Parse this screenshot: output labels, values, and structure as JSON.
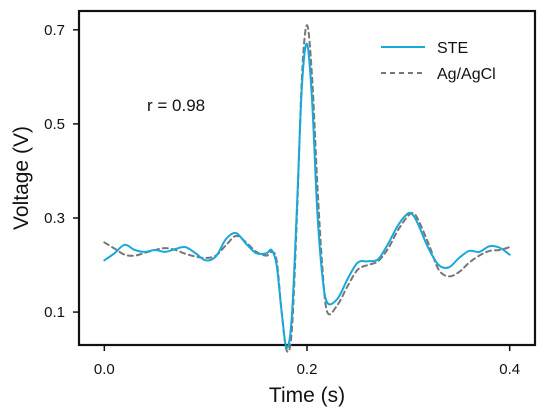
{
  "chart_data": {
    "type": "line",
    "xlabel": "Time (s)",
    "ylabel": "Voltage (V)",
    "xlim": [
      -0.025,
      0.425
    ],
    "ylim": [
      0.03,
      0.74
    ],
    "xticks": [
      "0.0",
      "0.2",
      "0.4"
    ],
    "yticks": [
      "0.1",
      "0.3",
      "0.5",
      "0.7"
    ],
    "xtick_values": [
      0.0,
      0.2,
      0.4
    ],
    "ytick_values": [
      0.1,
      0.3,
      0.5,
      0.7
    ],
    "grid": false,
    "legend_position": "top-right",
    "annotation": "r = 0.98",
    "series": [
      {
        "name": "STE",
        "color": "#1aa7d9",
        "style": "solid",
        "points": [
          [
            0.0,
            0.21
          ],
          [
            0.01,
            0.225
          ],
          [
            0.02,
            0.243
          ],
          [
            0.03,
            0.232
          ],
          [
            0.04,
            0.228
          ],
          [
            0.05,
            0.232
          ],
          [
            0.06,
            0.228
          ],
          [
            0.07,
            0.234
          ],
          [
            0.08,
            0.238
          ],
          [
            0.09,
            0.225
          ],
          [
            0.1,
            0.21
          ],
          [
            0.11,
            0.218
          ],
          [
            0.12,
            0.255
          ],
          [
            0.13,
            0.268
          ],
          [
            0.14,
            0.245
          ],
          [
            0.15,
            0.225
          ],
          [
            0.16,
            0.225
          ],
          [
            0.165,
            0.232
          ],
          [
            0.17,
            0.2
          ],
          [
            0.175,
            0.1
          ],
          [
            0.18,
            0.024
          ],
          [
            0.185,
            0.09
          ],
          [
            0.19,
            0.32
          ],
          [
            0.195,
            0.58
          ],
          [
            0.2,
            0.67
          ],
          [
            0.205,
            0.55
          ],
          [
            0.21,
            0.32
          ],
          [
            0.215,
            0.18
          ],
          [
            0.22,
            0.12
          ],
          [
            0.23,
            0.128
          ],
          [
            0.24,
            0.17
          ],
          [
            0.25,
            0.205
          ],
          [
            0.26,
            0.208
          ],
          [
            0.27,
            0.212
          ],
          [
            0.28,
            0.245
          ],
          [
            0.29,
            0.285
          ],
          [
            0.3,
            0.31
          ],
          [
            0.305,
            0.305
          ],
          [
            0.31,
            0.285
          ],
          [
            0.32,
            0.235
          ],
          [
            0.33,
            0.2
          ],
          [
            0.34,
            0.195
          ],
          [
            0.35,
            0.215
          ],
          [
            0.36,
            0.23
          ],
          [
            0.37,
            0.228
          ],
          [
            0.38,
            0.24
          ],
          [
            0.39,
            0.237
          ],
          [
            0.4,
            0.222
          ]
        ]
      },
      {
        "name": "Ag/AgCl",
        "color": "#777777",
        "style": "dashed",
        "points": [
          [
            0.0,
            0.248
          ],
          [
            0.01,
            0.235
          ],
          [
            0.02,
            0.222
          ],
          [
            0.03,
            0.22
          ],
          [
            0.04,
            0.226
          ],
          [
            0.05,
            0.232
          ],
          [
            0.06,
            0.236
          ],
          [
            0.07,
            0.232
          ],
          [
            0.08,
            0.224
          ],
          [
            0.09,
            0.218
          ],
          [
            0.1,
            0.215
          ],
          [
            0.11,
            0.22
          ],
          [
            0.12,
            0.242
          ],
          [
            0.13,
            0.262
          ],
          [
            0.14,
            0.248
          ],
          [
            0.15,
            0.228
          ],
          [
            0.16,
            0.22
          ],
          [
            0.165,
            0.228
          ],
          [
            0.17,
            0.21
          ],
          [
            0.175,
            0.1
          ],
          [
            0.18,
            0.018
          ],
          [
            0.185,
            0.06
          ],
          [
            0.19,
            0.3
          ],
          [
            0.195,
            0.6
          ],
          [
            0.2,
            0.71
          ],
          [
            0.205,
            0.6
          ],
          [
            0.21,
            0.38
          ],
          [
            0.215,
            0.2
          ],
          [
            0.22,
            0.1
          ],
          [
            0.23,
            0.115
          ],
          [
            0.24,
            0.155
          ],
          [
            0.25,
            0.19
          ],
          [
            0.26,
            0.2
          ],
          [
            0.27,
            0.208
          ],
          [
            0.28,
            0.235
          ],
          [
            0.29,
            0.275
          ],
          [
            0.3,
            0.305
          ],
          [
            0.305,
            0.31
          ],
          [
            0.31,
            0.295
          ],
          [
            0.32,
            0.245
          ],
          [
            0.33,
            0.19
          ],
          [
            0.34,
            0.176
          ],
          [
            0.35,
            0.185
          ],
          [
            0.36,
            0.205
          ],
          [
            0.37,
            0.22
          ],
          [
            0.38,
            0.23
          ],
          [
            0.39,
            0.232
          ],
          [
            0.4,
            0.238
          ]
        ]
      }
    ]
  }
}
